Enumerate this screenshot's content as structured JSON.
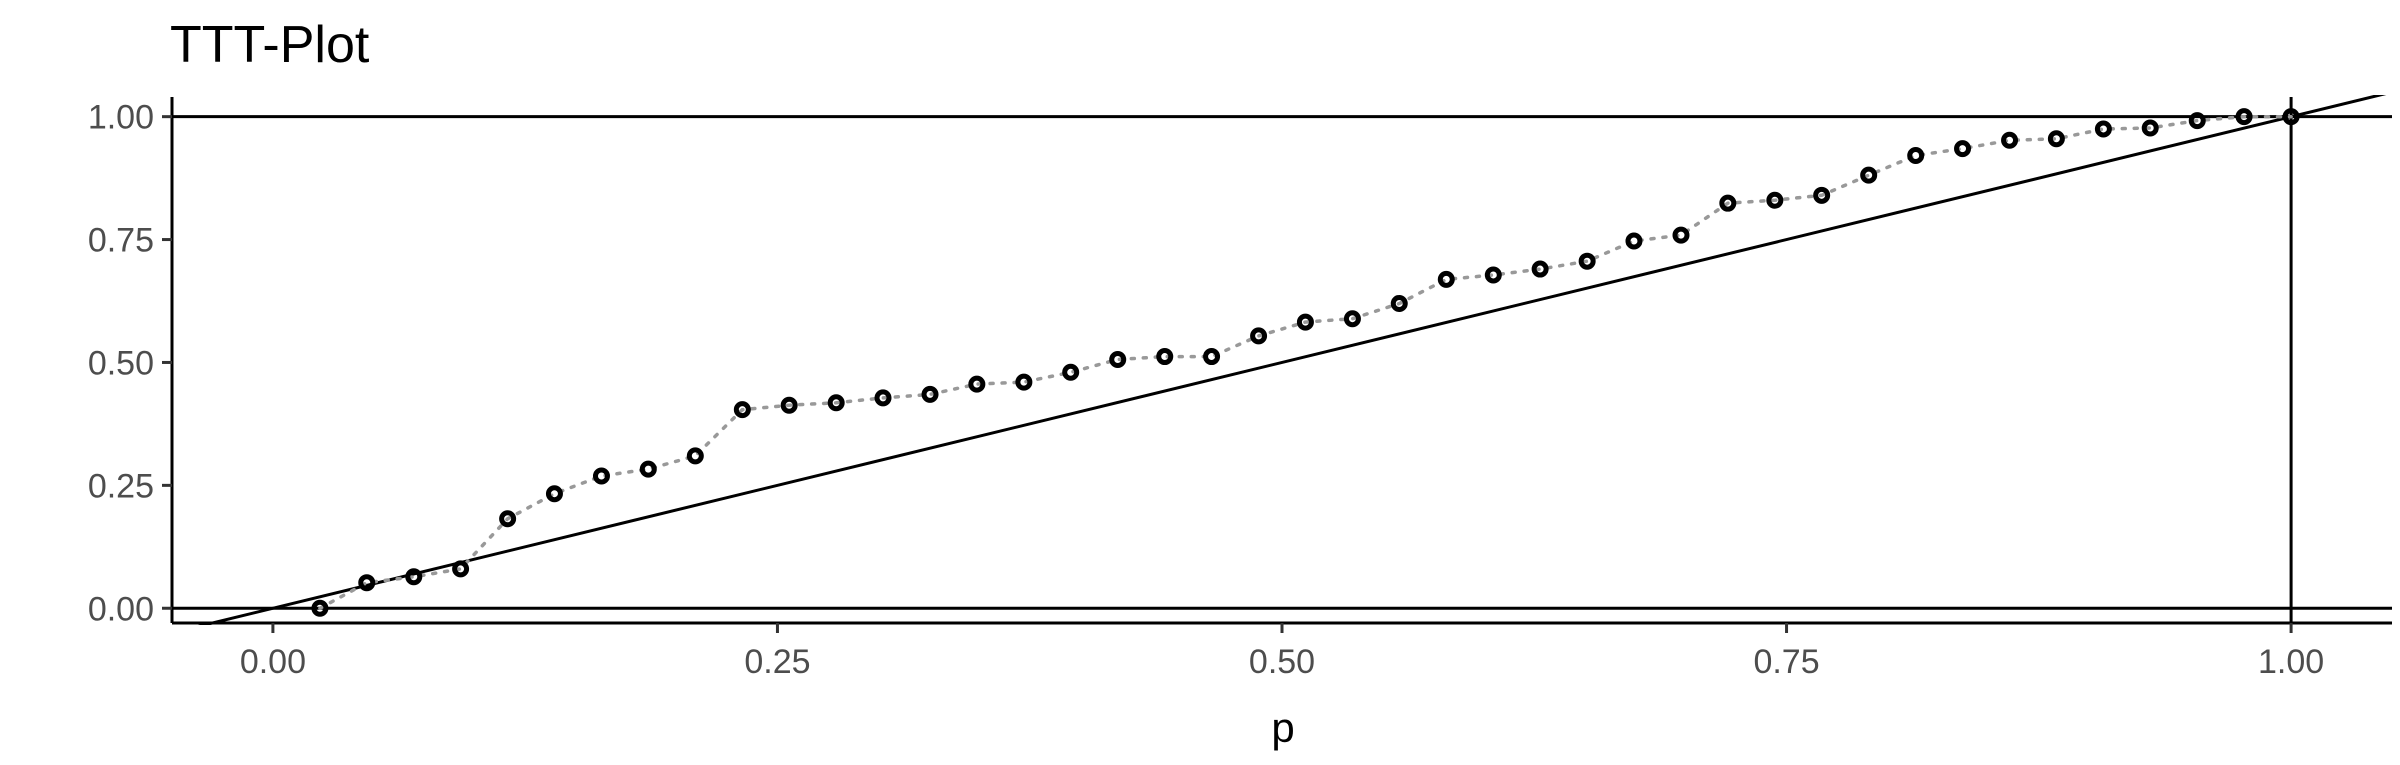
{
  "chart_data": {
    "type": "scatter",
    "title": "TTT-Plot",
    "xlabel": "p",
    "ylabel": "",
    "xlim": [
      -0.05,
      1.05
    ],
    "ylim": [
      -0.03,
      1.04
    ],
    "xticks": [
      0.0,
      0.25,
      0.5,
      0.75,
      1.0
    ],
    "yticks": [
      0.0,
      0.25,
      0.5,
      0.75,
      1.0
    ],
    "xtick_labels": [
      "0.00",
      "0.25",
      "0.50",
      "0.75",
      "1.00"
    ],
    "ytick_labels": [
      "0.00",
      "0.25",
      "0.50",
      "0.75",
      "1.00"
    ],
    "grid": false,
    "legend": "none",
    "reference_lines": {
      "horizontal": [
        0,
        1
      ],
      "vertical": [
        1
      ],
      "diagonal": true
    },
    "series": [
      {
        "style": "points-with-dotted-line",
        "point_color": "#000000",
        "line_color": "#999999",
        "x": [
          0.0233,
          0.0465,
          0.0698,
          0.093,
          0.1163,
          0.1395,
          0.1628,
          0.186,
          0.2093,
          0.2326,
          0.2558,
          0.2791,
          0.3023,
          0.3256,
          0.3488,
          0.3721,
          0.3953,
          0.4186,
          0.4419,
          0.4651,
          0.4884,
          0.5116,
          0.5349,
          0.5581,
          0.5814,
          0.6047,
          0.6279,
          0.6512,
          0.6744,
          0.6977,
          0.7209,
          0.7442,
          0.7674,
          0.7907,
          0.814,
          0.8372,
          0.8605,
          0.8837,
          0.907,
          0.9302,
          0.9535,
          0.9767,
          1.0
        ],
        "y": [
          0.0,
          0.052,
          0.064,
          0.08,
          0.182,
          0.233,
          0.269,
          0.283,
          0.31,
          0.404,
          0.413,
          0.418,
          0.428,
          0.435,
          0.456,
          0.46,
          0.48,
          0.506,
          0.512,
          0.512,
          0.554,
          0.582,
          0.589,
          0.62,
          0.669,
          0.678,
          0.69,
          0.706,
          0.747,
          0.759,
          0.824,
          0.83,
          0.84,
          0.881,
          0.921,
          0.935,
          0.952,
          0.955,
          0.975,
          0.977,
          0.992,
          1.0,
          1.0
        ]
      }
    ]
  }
}
